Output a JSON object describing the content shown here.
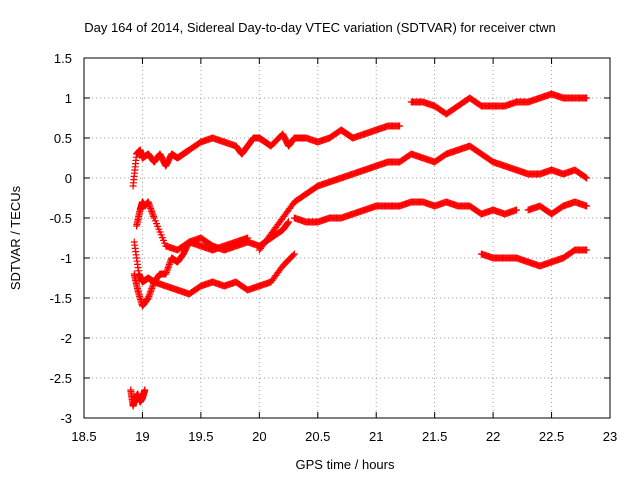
{
  "chart_data": {
    "type": "scatter",
    "title": "Day 164 of 2014, Sidereal Day-to-day VTEC variation (SDTVAR) for receiver ctwn",
    "xlabel": "GPS time / hours",
    "ylabel": "SDTVAR / TECUs",
    "xlim": [
      18.5,
      23
    ],
    "ylim": [
      -3,
      1.5
    ],
    "xticks": [
      "18.5",
      "19",
      "19.5",
      "20",
      "20.5",
      "21",
      "21.5",
      "22",
      "22.5",
      "23"
    ],
    "yticks": [
      "1.5",
      "1",
      "0.5",
      "0",
      "-0.5",
      "-1",
      "-1.5",
      "-2",
      "-2.5",
      "-3"
    ],
    "grid": true,
    "marker": "+",
    "color": "#ff0000",
    "series": [
      {
        "x": [
          18.92,
          18.95,
          18.98,
          19.0,
          19.05,
          19.1,
          19.15,
          19.2,
          19.25,
          19.3,
          19.35,
          19.4,
          19.5,
          19.6,
          19.7,
          19.8,
          19.85,
          19.9,
          19.95,
          20.0,
          20.05,
          20.1,
          20.2,
          20.25,
          20.3,
          20.35,
          20.4,
          20.5,
          20.6,
          20.7,
          20.75,
          20.8,
          20.9,
          21.0,
          21.1,
          21.2
        ],
        "y": [
          -0.1,
          0.3,
          0.35,
          0.25,
          0.3,
          0.2,
          0.3,
          0.15,
          0.3,
          0.25,
          0.3,
          0.35,
          0.45,
          0.5,
          0.45,
          0.4,
          0.3,
          0.4,
          0.5,
          0.5,
          0.45,
          0.4,
          0.55,
          0.4,
          0.5,
          0.5,
          0.5,
          0.45,
          0.5,
          0.6,
          0.55,
          0.5,
          0.55,
          0.6,
          0.65,
          0.65
        ]
      },
      {
        "x": [
          21.3,
          21.4,
          21.5,
          21.6,
          21.7,
          21.8,
          21.9,
          22.0,
          22.1,
          22.2,
          22.3,
          22.4,
          22.5,
          22.6,
          22.7,
          22.8
        ],
        "y": [
          0.95,
          0.95,
          0.9,
          0.8,
          0.9,
          1.0,
          0.9,
          0.9,
          0.9,
          0.95,
          0.95,
          1.0,
          1.05,
          1.0,
          1.0,
          1.0
        ]
      },
      {
        "x": [
          18.95,
          18.98,
          19.0,
          19.02,
          19.05,
          19.1,
          19.2,
          19.3,
          19.4,
          19.5,
          19.6,
          19.7,
          19.8,
          19.9,
          20.0,
          20.1,
          20.2,
          20.25
        ],
        "y": [
          -0.6,
          -0.4,
          -0.3,
          -0.35,
          -0.3,
          -0.5,
          -0.85,
          -0.9,
          -0.8,
          -0.75,
          -0.85,
          -0.9,
          -0.85,
          -0.8,
          -0.85,
          -0.75,
          -0.65,
          -0.55
        ]
      },
      {
        "x": [
          20.3,
          20.4,
          20.5,
          20.6,
          20.7,
          20.8,
          20.9,
          21.0,
          21.1,
          21.2,
          21.3,
          21.4,
          21.5,
          21.6,
          21.7,
          21.8,
          21.9,
          22.0,
          22.1,
          22.2
        ],
        "y": [
          -0.5,
          -0.55,
          -0.55,
          -0.5,
          -0.5,
          -0.45,
          -0.4,
          -0.35,
          -0.35,
          -0.35,
          -0.3,
          -0.3,
          -0.35,
          -0.3,
          -0.35,
          -0.35,
          -0.45,
          -0.4,
          -0.45,
          -0.4
        ]
      },
      {
        "x": [
          22.3,
          22.4,
          22.5,
          22.6,
          22.7,
          22.8
        ],
        "y": [
          -0.4,
          -0.35,
          -0.45,
          -0.35,
          -0.3,
          -0.35
        ]
      },
      {
        "x": [
          18.93,
          18.96,
          19.0,
          19.05,
          19.1,
          19.2,
          19.3,
          19.4,
          19.5,
          19.6,
          19.7,
          19.8,
          19.9,
          20.0,
          20.1,
          20.2,
          20.3
        ],
        "y": [
          -1.2,
          -1.4,
          -1.6,
          -1.5,
          -1.3,
          -1.35,
          -1.4,
          -1.45,
          -1.35,
          -1.3,
          -1.35,
          -1.3,
          -1.4,
          -1.35,
          -1.3,
          -1.1,
          -0.95
        ]
      },
      {
        "x": [
          18.93,
          18.97,
          19.0,
          19.05,
          19.1,
          19.15,
          19.2,
          19.25,
          19.3,
          19.35,
          19.4,
          19.5,
          19.6,
          19.7,
          19.8,
          19.9
        ],
        "y": [
          -0.8,
          -1.2,
          -1.3,
          -1.25,
          -1.3,
          -1.2,
          -1.2,
          -1.0,
          -1.05,
          -0.95,
          -0.8,
          -0.85,
          -0.9,
          -0.85,
          -0.8,
          -0.75
        ]
      },
      {
        "x": [
          20.0,
          20.1,
          20.2,
          20.3,
          20.4,
          20.5,
          20.6,
          20.7,
          20.8,
          20.9,
          21.0,
          21.1,
          21.2,
          21.3,
          21.4,
          21.5,
          21.6,
          21.7,
          21.8,
          21.9,
          22.0,
          22.1,
          22.2,
          22.3,
          22.4,
          22.5,
          22.6,
          22.7,
          22.8
        ],
        "y": [
          -0.9,
          -0.7,
          -0.5,
          -0.3,
          -0.2,
          -0.1,
          -0.05,
          0.0,
          0.05,
          0.1,
          0.15,
          0.2,
          0.2,
          0.3,
          0.25,
          0.2,
          0.3,
          0.35,
          0.4,
          0.3,
          0.2,
          0.15,
          0.1,
          0.05,
          0.05,
          0.1,
          0.05,
          0.1,
          0.0
        ]
      },
      {
        "x": [
          21.9,
          22.0,
          22.1,
          22.2,
          22.3,
          22.4,
          22.5,
          22.6,
          22.7,
          22.8
        ],
        "y": [
          -0.95,
          -1.0,
          -1.0,
          -1.0,
          -1.05,
          -1.1,
          -1.05,
          -1.0,
          -0.9,
          -0.9
        ]
      },
      {
        "x": [
          18.9,
          18.92,
          18.94,
          18.96,
          18.98,
          19.0,
          19.02
        ],
        "y": [
          -2.65,
          -2.85,
          -2.75,
          -2.7,
          -2.8,
          -2.75,
          -2.65
        ]
      }
    ]
  }
}
